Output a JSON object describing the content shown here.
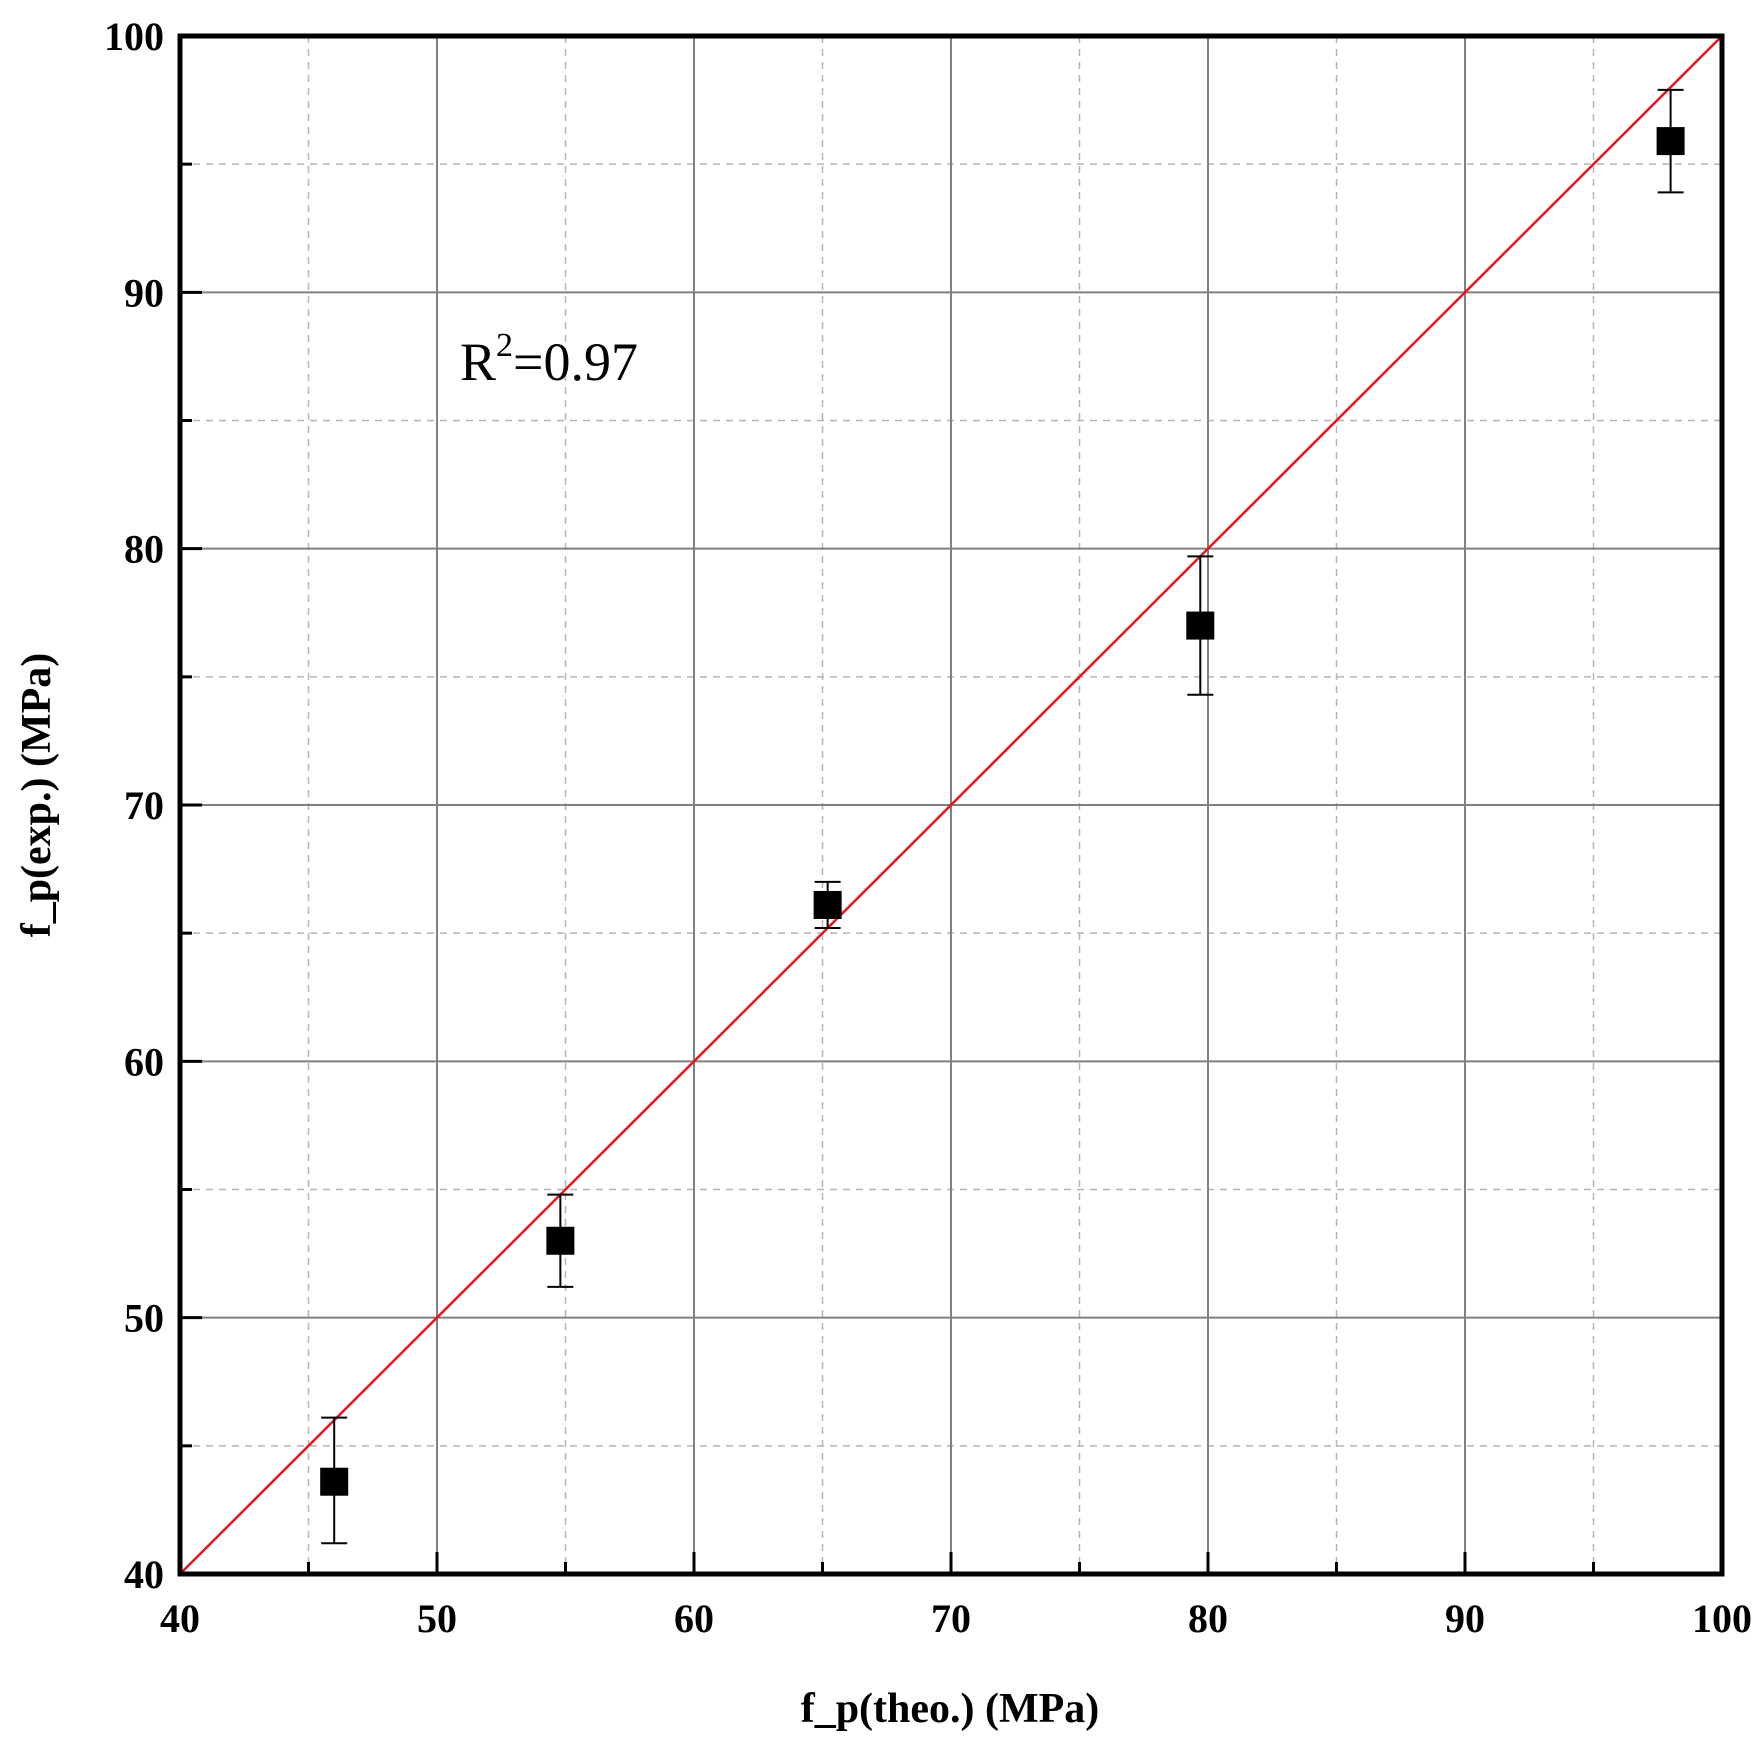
{
  "chart_data": {
    "type": "scatter",
    "xlabel": "f_p(theo.) (MPa)",
    "ylabel": "f_p(exp.) (MPa)",
    "xlim": [
      40,
      100
    ],
    "ylim": [
      40,
      100
    ],
    "x_ticks": [
      40,
      50,
      60,
      70,
      80,
      90,
      100
    ],
    "y_ticks": [
      40,
      50,
      60,
      70,
      80,
      90,
      100
    ],
    "x_minor_step": 5,
    "y_minor_step": 5,
    "grid": "on (major solid, minor dashed)",
    "points": [
      {
        "x": 46.0,
        "y": 43.6,
        "err_low": 41.2,
        "err_high": 46.1
      },
      {
        "x": 54.8,
        "y": 53.0,
        "err_low": 51.2,
        "err_high": 54.8
      },
      {
        "x": 65.2,
        "y": 66.1,
        "err_low": 65.2,
        "err_high": 67.0
      },
      {
        "x": 79.7,
        "y": 77.0,
        "err_low": 74.3,
        "err_high": 79.7
      },
      {
        "x": 98.0,
        "y": 95.9,
        "err_low": 93.9,
        "err_high": 97.9
      }
    ],
    "reference_line": {
      "from": [
        40,
        40
      ],
      "to": [
        100,
        100
      ],
      "color": "#e8141e"
    },
    "annotation": {
      "text_base": "R",
      "text_sup": "2",
      "text_rest": "=0.97"
    },
    "marker_color": "#000000"
  }
}
